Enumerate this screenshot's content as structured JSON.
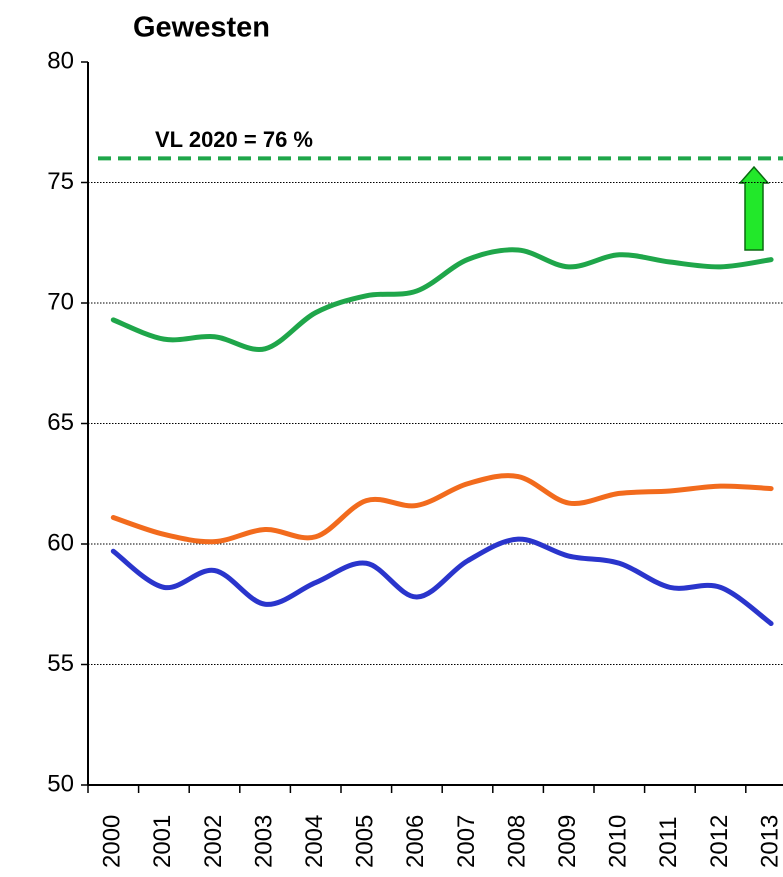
{
  "chart_data": {
    "type": "line",
    "title": "Gewesten",
    "categories": [
      "2000",
      "2001",
      "2002",
      "2003",
      "2004",
      "2005",
      "2006",
      "2007",
      "2008",
      "2009",
      "2010",
      "2011",
      "2012",
      "2013"
    ],
    "series": [
      {
        "color": "#1fa64a",
        "values": [
          69.3,
          68.5,
          68.6,
          68.1,
          69.6,
          70.3,
          70.5,
          71.8,
          72.2,
          71.5,
          72.0,
          71.7,
          71.5,
          71.8
        ]
      },
      {
        "color": "#f26b1d",
        "values": [
          61.1,
          60.4,
          60.1,
          60.6,
          60.3,
          61.8,
          61.6,
          62.5,
          62.8,
          61.7,
          62.1,
          62.2,
          62.4,
          62.3
        ]
      },
      {
        "color": "#2a35cc",
        "values": [
          59.7,
          58.2,
          58.9,
          57.5,
          58.4,
          59.2,
          57.8,
          59.3,
          60.2,
          59.5,
          59.2,
          58.2,
          58.2,
          56.7
        ]
      }
    ],
    "target": {
      "value": 76,
      "label": "VL 2020 = 76 %",
      "color": "#1fa64a"
    },
    "ylim": [
      50,
      80
    ],
    "yticks": [
      50,
      55,
      60,
      65,
      70,
      75,
      80
    ],
    "grid": true
  }
}
